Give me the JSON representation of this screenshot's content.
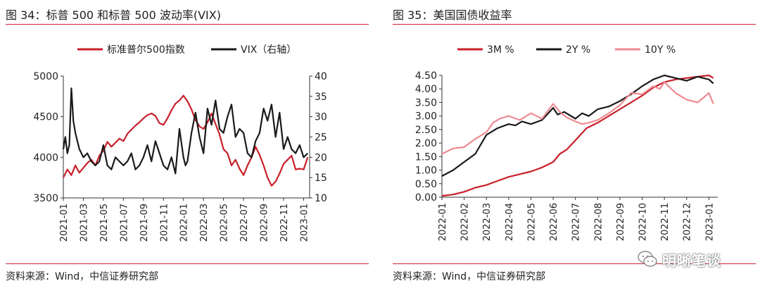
{
  "left_panel": {
    "title": "图 34：标普 500 和标普 500 波动率(VIX)",
    "source": "资料来源：Wind，中信证券研究部"
  },
  "right_panel": {
    "title": "图 35：美国国债收益率",
    "source": "资料来源：Wind，中信证券研究部"
  },
  "watermark": {
    "text": "明晰笔谈",
    "icon": "wechat-icon"
  },
  "colors": {
    "red": "#c8202a",
    "black": "#1a1a1a",
    "pink": "#ee8a92",
    "rule": "#c8202a"
  },
  "chart_data": [
    {
      "type": "line",
      "xlabels": [
        "2021-01",
        "2021-03",
        "2021-05",
        "2021-07",
        "2021-09",
        "2021-11",
        "2022-01",
        "2022-03",
        "2022-05",
        "2022-07",
        "2022-09",
        "2022-11",
        "2023-01"
      ],
      "ylim": [
        3500,
        5000
      ],
      "yticks": [
        3500,
        4000,
        4500,
        5000
      ],
      "y2lim": [
        10,
        40
      ],
      "y2ticks": [
        10,
        15,
        20,
        25,
        30,
        35,
        40
      ],
      "legend": [
        "标准普尔500指数",
        "VIX（右轴）"
      ],
      "series": [
        {
          "name": "标准普尔500指数",
          "axis": "left",
          "color": "#c8202a",
          "x": [
            0,
            0.2,
            0.4,
            0.6,
            0.8,
            1.0,
            1.2,
            1.4,
            1.6,
            1.8,
            2.0,
            2.2,
            2.4,
            2.6,
            2.8,
            3.0,
            3.2,
            3.4,
            3.6,
            3.8,
            4.0,
            4.2,
            4.4,
            4.6,
            4.8,
            5.0,
            5.2,
            5.4,
            5.6,
            5.8,
            6.0,
            6.2,
            6.4,
            6.6,
            6.8,
            7.0,
            7.2,
            7.4,
            7.6,
            7.8,
            8.0,
            8.2,
            8.4,
            8.6,
            8.8,
            9.0,
            9.2,
            9.4,
            9.6,
            9.8,
            10.0,
            10.2,
            10.4,
            10.6,
            10.8,
            11.0,
            11.2,
            11.4,
            11.6,
            11.8,
            12.0,
            12.2
          ],
          "values": [
            3750,
            3850,
            3780,
            3900,
            3810,
            3870,
            3930,
            3970,
            3900,
            4020,
            4080,
            4190,
            4130,
            4180,
            4230,
            4200,
            4290,
            4340,
            4390,
            4430,
            4480,
            4520,
            4540,
            4510,
            4420,
            4400,
            4480,
            4580,
            4660,
            4700,
            4760,
            4690,
            4590,
            4460,
            4380,
            4350,
            4430,
            4540,
            4410,
            4280,
            4100,
            4050,
            3900,
            3970,
            3860,
            3780,
            3900,
            4000,
            4130,
            4030,
            3900,
            3750,
            3650,
            3700,
            3800,
            3920,
            3970,
            4020,
            3850,
            3860,
            3850,
            4000
          ]
        },
        {
          "name": "VIX（右轴）",
          "axis": "right",
          "color": "#1a1a1a",
          "x": [
            0,
            0.1,
            0.2,
            0.3,
            0.4,
            0.5,
            0.6,
            0.7,
            0.8,
            1.0,
            1.2,
            1.4,
            1.6,
            1.8,
            2.0,
            2.2,
            2.4,
            2.6,
            2.8,
            3.0,
            3.2,
            3.4,
            3.6,
            3.8,
            4.0,
            4.2,
            4.4,
            4.6,
            4.8,
            5.0,
            5.2,
            5.4,
            5.6,
            5.8,
            6.0,
            6.1,
            6.2,
            6.4,
            6.6,
            6.8,
            7.0,
            7.2,
            7.4,
            7.6,
            7.8,
            8.0,
            8.2,
            8.4,
            8.6,
            8.8,
            9.0,
            9.2,
            9.4,
            9.6,
            9.8,
            10.0,
            10.2,
            10.4,
            10.6,
            10.8,
            11.0,
            11.2,
            11.4,
            11.6,
            11.8,
            12.0,
            12.2
          ],
          "values": [
            22,
            25,
            21,
            23,
            37,
            29,
            26,
            24,
            22,
            20,
            21,
            19,
            18,
            19,
            23,
            18,
            17,
            20,
            19,
            18,
            19,
            21,
            17,
            18,
            20,
            23,
            19,
            24,
            21,
            18,
            17,
            20,
            16,
            27,
            20,
            18,
            19,
            26,
            31,
            25,
            21,
            32,
            28,
            34,
            27,
            26,
            30,
            33,
            25,
            27,
            26,
            21,
            20,
            24,
            26,
            32,
            29,
            33,
            25,
            31,
            22,
            25,
            22,
            21,
            23,
            20,
            21
          ]
        }
      ]
    },
    {
      "type": "line",
      "xlabels": [
        "2022-01",
        "2022-02",
        "2022-03",
        "2022-04",
        "2022-05",
        "2022-06",
        "2022-07",
        "2022-08",
        "2022-09",
        "2022-10",
        "2022-11",
        "2022-12",
        "2023-01"
      ],
      "ylim": [
        0,
        4.5
      ],
      "yticks": [
        0.0,
        0.5,
        1.0,
        1.5,
        2.0,
        2.5,
        3.0,
        3.5,
        4.0,
        4.5
      ],
      "legend": [
        "3M %",
        "2Y %",
        "10Y %"
      ],
      "series": [
        {
          "name": "3M %",
          "color": "#c8202a",
          "x": [
            0,
            0.5,
            1.0,
            1.5,
            2.0,
            2.5,
            3.0,
            3.5,
            4.0,
            4.5,
            5.0,
            5.3,
            5.6,
            6.0,
            6.5,
            7.0,
            7.5,
            8.0,
            8.5,
            9.0,
            9.5,
            10.0,
            10.5,
            11.0,
            11.5,
            12.0,
            12.2
          ],
          "values": [
            0.05,
            0.1,
            0.2,
            0.35,
            0.45,
            0.6,
            0.75,
            0.85,
            0.95,
            1.1,
            1.3,
            1.6,
            1.75,
            2.1,
            2.55,
            2.75,
            3.0,
            3.25,
            3.5,
            3.75,
            4.05,
            4.25,
            4.35,
            4.4,
            4.45,
            4.5,
            4.4
          ]
        },
        {
          "name": "2Y %",
          "color": "#1a1a1a",
          "x": [
            0,
            0.5,
            1.0,
            1.5,
            2.0,
            2.5,
            3.0,
            3.3,
            3.6,
            4.0,
            4.5,
            5.0,
            5.2,
            5.5,
            6.0,
            6.3,
            6.6,
            7.0,
            7.5,
            8.0,
            8.5,
            9.0,
            9.5,
            10.0,
            10.5,
            11.0,
            11.5,
            12.0,
            12.2
          ],
          "values": [
            0.78,
            1.0,
            1.3,
            1.6,
            2.3,
            2.55,
            2.7,
            2.65,
            2.8,
            2.7,
            2.85,
            3.3,
            3.05,
            3.15,
            2.9,
            3.1,
            3.0,
            3.25,
            3.35,
            3.55,
            3.8,
            4.1,
            4.35,
            4.5,
            4.4,
            4.3,
            4.45,
            4.35,
            4.2
          ]
        },
        {
          "name": "10Y %",
          "color": "#ee8a92",
          "x": [
            0,
            0.5,
            1.0,
            1.5,
            2.0,
            2.3,
            2.6,
            3.0,
            3.5,
            4.0,
            4.5,
            5.0,
            5.3,
            5.6,
            6.0,
            6.3,
            6.6,
            7.0,
            7.5,
            8.0,
            8.5,
            9.0,
            9.5,
            9.8,
            10.0,
            10.5,
            11.0,
            11.5,
            12.0,
            12.2
          ],
          "values": [
            1.6,
            1.8,
            1.85,
            2.15,
            2.4,
            2.75,
            2.9,
            3.0,
            2.85,
            3.1,
            2.9,
            3.45,
            3.15,
            2.95,
            2.8,
            2.7,
            2.75,
            2.85,
            3.1,
            3.4,
            3.85,
            3.8,
            4.1,
            4.0,
            4.25,
            3.85,
            3.6,
            3.5,
            3.85,
            3.45
          ]
        }
      ]
    }
  ]
}
